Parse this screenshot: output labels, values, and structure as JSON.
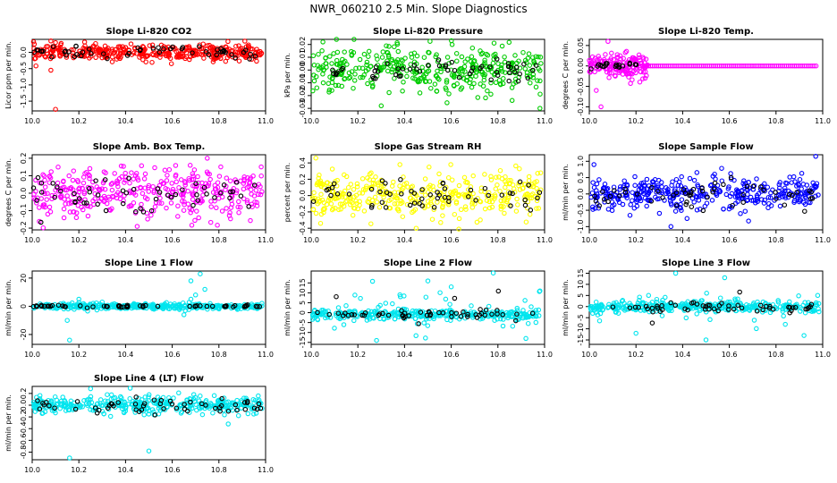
{
  "title": "NWR_060210  2.5 Min. Slope Diagnostics",
  "colors": {
    "black": "#000000"
  },
  "chart_data": [
    {
      "type": "scatter",
      "title": "Slope Li-820 CO2",
      "ylabel": "Licor ppm per min.",
      "xlim": [
        10.0,
        11.0
      ],
      "ylim": [
        -1.8,
        0.4
      ],
      "xticks": [
        "10.0",
        "10.2",
        "10.4",
        "10.6",
        "10.8",
        "11.0"
      ],
      "yticks": [
        "0.0",
        "-0.5",
        "-1.0",
        "-1.5"
      ],
      "ytick_values": [
        0,
        -0.5,
        -1.0,
        -1.5
      ],
      "color": "#ff0000",
      "center": 0.0,
      "spread": 0.12,
      "blackSpread": 0.08,
      "outliers": [
        [
          10.08,
          0.35
        ],
        [
          10.1,
          0.3
        ],
        [
          10.1,
          -1.75
        ],
        [
          10.08,
          -0.55
        ]
      ]
    },
    {
      "type": "scatter",
      "title": "Slope Li-820 Pressure",
      "ylabel": "kPa per min.",
      "xlim": [
        10.0,
        11.0
      ],
      "ylim": [
        -0.032,
        0.024
      ],
      "xticks": [
        "10.0",
        "10.2",
        "10.4",
        "10.6",
        "10.8",
        "11.0"
      ],
      "yticks": [
        "0.02",
        "0.01",
        "0.00",
        "-0.01",
        "-0.02",
        "-0.03"
      ],
      "ytick_values": [
        0.02,
        0.01,
        0,
        -0.01,
        -0.02,
        -0.03
      ],
      "color": "#00cc00",
      "center": 0.0,
      "spread": 0.009,
      "blackSpread": 0.005,
      "outliers": [
        [
          10.05,
          0.022
        ],
        [
          10.98,
          -0.03
        ],
        [
          10.3,
          -0.028
        ]
      ]
    },
    {
      "type": "scatter",
      "title": "Slope Li-820 Temp.",
      "ylabel": "degrees C per min.",
      "xlim": [
        10.0,
        11.0
      ],
      "ylim": [
        -0.11,
        0.065
      ],
      "xticks": [
        "10.0",
        "10.2",
        "10.4",
        "10.6",
        "10.8",
        "11.0"
      ],
      "yticks": [
        "0.05",
        "0.00",
        "-0.05",
        "-0.10"
      ],
      "ytick_values": [
        0.05,
        0,
        -0.05,
        -0.1
      ],
      "color": "#ff00ff",
      "center": 0.0,
      "spread": 0.0,
      "blackSpread": 0.0,
      "special": "temp",
      "outliers": [
        [
          10.05,
          -0.1
        ],
        [
          10.08,
          0.06
        ],
        [
          10.03,
          -0.06
        ]
      ]
    },
    {
      "type": "scatter",
      "title": "Slope Amb. Box Temp.",
      "ylabel": "degrees C per min.",
      "xlim": [
        10.0,
        11.0
      ],
      "ylim": [
        -0.21,
        0.22
      ],
      "xticks": [
        "10.0",
        "10.2",
        "10.4",
        "10.6",
        "10.8",
        "11.0"
      ],
      "yticks": [
        "0.2",
        "0.1",
        "0.0",
        "-0.1",
        "-0.2"
      ],
      "ytick_values": [
        0.2,
        0.1,
        0,
        -0.1,
        -0.2
      ],
      "color": "#ff00ff",
      "center": 0.0,
      "spread": 0.07,
      "blackSpread": 0.05,
      "outliers": [
        [
          10.75,
          0.2
        ],
        [
          10.45,
          -0.19
        ]
      ]
    },
    {
      "type": "scatter",
      "title": "Slope Gas Stream RH",
      "ylabel": "percent per min.",
      "xlim": [
        10.0,
        11.0
      ],
      "ylim": [
        -0.42,
        0.5
      ],
      "xticks": [
        "10.0",
        "10.2",
        "10.4",
        "10.6",
        "10.8",
        "11.0"
      ],
      "yticks": [
        "0.4",
        "0.2",
        "0.0",
        "-0.2",
        "-0.4"
      ],
      "ytick_values": [
        0.4,
        0.2,
        0,
        -0.2,
        -0.4
      ],
      "color": "#ffff00",
      "center": 0.0,
      "spread": 0.14,
      "blackSpread": 0.1,
      "outliers": [
        [
          10.02,
          0.46
        ],
        [
          10.45,
          -0.4
        ],
        [
          10.38,
          0.38
        ]
      ]
    },
    {
      "type": "scatter",
      "title": "Slope Sample Flow",
      "ylabel": "ml/min per min.",
      "xlim": [
        10.0,
        11.0
      ],
      "ylim": [
        -1.1,
        1.2
      ],
      "xticks": [
        "10.0",
        "10.2",
        "10.4",
        "10.6",
        "10.8",
        "11.0"
      ],
      "yticks": [
        "1.0",
        "0.5",
        "0.0",
        "-0.5",
        "-1.0"
      ],
      "ytick_values": [
        1,
        0.5,
        0,
        -0.5,
        -1
      ],
      "color": "#0000ff",
      "center": 0.0,
      "spread": 0.25,
      "blackSpread": 0.2,
      "outliers": [
        [
          10.97,
          1.15
        ],
        [
          10.35,
          -1.0
        ],
        [
          10.02,
          0.9
        ]
      ]
    },
    {
      "type": "scatter",
      "title": "Slope Line 1 Flow",
      "ylabel": "ml/min per min.",
      "xlim": [
        10.0,
        11.0
      ],
      "ylim": [
        -27,
        25
      ],
      "xticks": [
        "10.0",
        "10.2",
        "10.4",
        "10.6",
        "10.8",
        "11.0"
      ],
      "yticks": [
        "20",
        "0",
        "-20"
      ],
      "ytick_values": [
        20,
        0,
        -20
      ],
      "color": "#00e5ee",
      "center": 0.0,
      "spread": 1.0,
      "blackSpread": 0.4,
      "outliers": [
        [
          10.72,
          23
        ],
        [
          10.68,
          18
        ],
        [
          10.16,
          -24
        ],
        [
          10.7,
          8
        ],
        [
          10.74,
          12
        ],
        [
          10.2,
          5
        ],
        [
          10.65,
          -6
        ],
        [
          10.3,
          3
        ],
        [
          10.68,
          5
        ],
        [
          10.15,
          -10
        ]
      ]
    },
    {
      "type": "scatter",
      "title": "Slope Line 2 Flow",
      "ylabel": "ml/min per min.",
      "xlim": [
        10.0,
        11.0
      ],
      "ylim": [
        -16,
        21
      ],
      "xticks": [
        "10.0",
        "10.2",
        "10.4",
        "10.6",
        "10.8",
        "11.0"
      ],
      "yticks": [
        "15",
        "10",
        "5",
        "0",
        "-5",
        "-10",
        "-15"
      ],
      "ytick_values": [
        15,
        10,
        5,
        0,
        -5,
        -10,
        -15
      ],
      "color": "#00e5ee",
      "center": -1.0,
      "spread": 1.2,
      "blackSpread": 1.0,
      "wide": 7.0,
      "outliers": [
        [
          10.78,
          20
        ],
        [
          10.38,
          9
        ],
        [
          10.5,
          16
        ],
        [
          10.28,
          -14
        ],
        [
          10.6,
          13
        ],
        [
          10.92,
          -13
        ]
      ]
    },
    {
      "type": "scatter",
      "title": "Slope Line 3 Flow",
      "ylabel": "ml/min per min.",
      "xlim": [
        10.0,
        11.0
      ],
      "ylim": [
        -17,
        16
      ],
      "xticks": [
        "10.0",
        "10.2",
        "10.4",
        "10.6",
        "10.8",
        "11.0"
      ],
      "yticks": [
        "15",
        "10",
        "5",
        "0",
        "-5",
        "-10",
        "-15"
      ],
      "ytick_values": [
        15,
        10,
        5,
        0,
        -5,
        -10,
        -15
      ],
      "color": "#00e5ee",
      "center": 0.0,
      "spread": 1.2,
      "blackSpread": 1.0,
      "wide": 5.0,
      "outliers": [
        [
          10.37,
          15
        ],
        [
          10.5,
          -15
        ],
        [
          10.92,
          -13
        ],
        [
          10.2,
          -12
        ],
        [
          10.84,
          -8
        ],
        [
          10.58,
          13
        ]
      ]
    },
    {
      "type": "scatter",
      "title": "Slope Line 4 (LT) Flow",
      "ylabel": "ml/min per min.",
      "xlim": [
        10.0,
        11.0
      ],
      "ylim": [
        -0.93,
        0.32
      ],
      "xticks": [
        "10.0",
        "10.2",
        "10.4",
        "10.6",
        "10.8",
        "11.0"
      ],
      "yticks": [
        "0.2",
        "0.0",
        "-0.2",
        "-0.4",
        "-0.6",
        "-0.8"
      ],
      "ytick_values": [
        0.2,
        0,
        -0.2,
        -0.4,
        -0.6,
        -0.8
      ],
      "color": "#00e5ee",
      "center": 0.0,
      "spread": 0.07,
      "blackSpread": 0.06,
      "outliers": [
        [
          10.16,
          -0.9
        ],
        [
          10.5,
          -0.78
        ],
        [
          10.84,
          -0.32
        ],
        [
          10.42,
          0.29
        ],
        [
          10.25,
          0.28
        ]
      ]
    }
  ]
}
